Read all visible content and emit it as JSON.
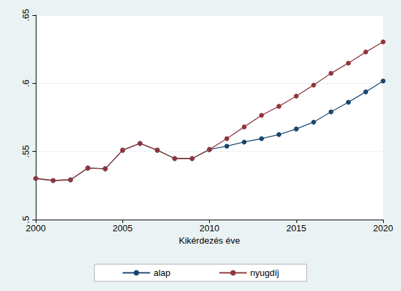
{
  "chart_data": {
    "type": "line",
    "x_label": "Kikérdezés éve",
    "x": [
      2000,
      2001,
      2002,
      2003,
      2004,
      2005,
      2006,
      2007,
      2008,
      2009,
      2010,
      2011,
      2012,
      2013,
      2014,
      2015,
      2016,
      2017,
      2018,
      2019,
      2020
    ],
    "series": [
      {
        "name": "alap",
        "color": "#1a476f",
        "values": [
          0.5302,
          0.5287,
          0.5292,
          0.5378,
          0.5373,
          0.5509,
          0.5559,
          0.5509,
          0.5448,
          0.5448,
          0.5514,
          0.5539,
          0.5569,
          0.5594,
          0.5624,
          0.5665,
          0.5715,
          0.579,
          0.5861,
          0.5937,
          0.6017
        ]
      },
      {
        "name": "nyugdíj",
        "color": "#90353b",
        "values": [
          0.5302,
          0.5287,
          0.5292,
          0.5378,
          0.5373,
          0.5509,
          0.5559,
          0.5509,
          0.5448,
          0.5448,
          0.5514,
          0.5594,
          0.568,
          0.5765,
          0.5831,
          0.5906,
          0.5987,
          0.6073,
          0.6148,
          0.6229,
          0.6304
        ]
      }
    ],
    "xlim": [
      2000,
      2020
    ],
    "xticks": [
      2000,
      2005,
      2010,
      2015,
      2020
    ],
    "ylim": [
      0.5,
      0.65
    ],
    "yticks": [
      {
        "value": 0.5,
        "label": ".5"
      },
      {
        "value": 0.55,
        "label": ".55"
      },
      {
        "value": 0.6,
        "label": ".6"
      },
      {
        "value": 0.65,
        "label": ".65"
      }
    ],
    "grid": true,
    "legend": "bottom",
    "marker": "circle"
  }
}
